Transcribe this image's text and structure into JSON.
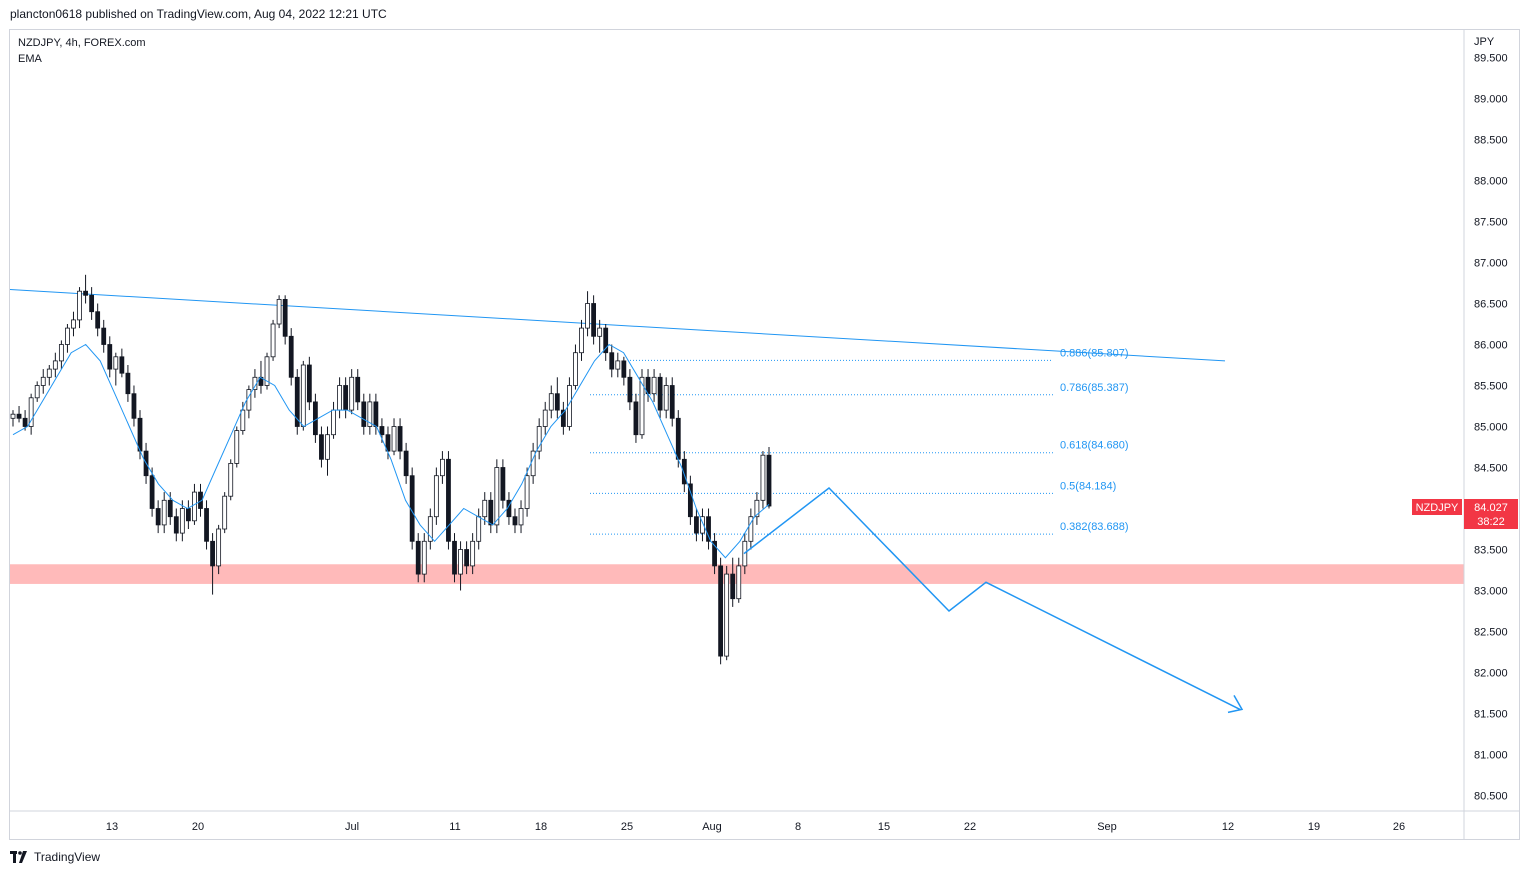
{
  "header": {
    "published": "plancton0618 published on TradingView.com, Aug 04, 2022 12:21 UTC"
  },
  "legend": {
    "symbol_line": "NZDJPY, 4h, FOREX.com",
    "indicator": "EMA"
  },
  "footer": {
    "brand": "TradingView"
  },
  "colors": {
    "up": "#ffffff",
    "down": "#131722",
    "ema": "#2196f3",
    "drawing": "#2196f3",
    "zone": "#ffb2b2",
    "fib": "#2196f3",
    "badge": "#f23645",
    "grid": "#d1d4dc"
  },
  "chart_data": {
    "type": "candlestick",
    "symbol": "NZDJPY",
    "timeframe": "4h",
    "source": "FOREX.com",
    "currency": "JPY",
    "ylim": [
      80.25,
      89.75
    ],
    "y_ticks": [
      "89.500",
      "89.000",
      "88.500",
      "88.000",
      "87.500",
      "87.000",
      "86.500",
      "86.000",
      "85.500",
      "85.000",
      "84.500",
      "84.000",
      "83.500",
      "83.000",
      "82.500",
      "82.000",
      "81.500",
      "81.000",
      "80.500"
    ],
    "x_ticks": [
      "13",
      "20",
      "Jul",
      "11",
      "18",
      "25",
      "Aug",
      "8",
      "15",
      "22",
      "Sep",
      "12",
      "19",
      "26"
    ],
    "price_badge": {
      "label": "NZDJPY",
      "price": "84.027",
      "countdown": "38:22"
    },
    "candles": [
      [
        85.1,
        85.2,
        85.0,
        85.15
      ],
      [
        85.15,
        85.25,
        85.05,
        85.1
      ],
      [
        85.1,
        85.2,
        84.95,
        85.0
      ],
      [
        85.0,
        85.4,
        84.9,
        85.35
      ],
      [
        85.35,
        85.55,
        85.3,
        85.5
      ],
      [
        85.5,
        85.7,
        85.4,
        85.6
      ],
      [
        85.6,
        85.75,
        85.5,
        85.7
      ],
      [
        85.7,
        85.9,
        85.6,
        85.8
      ],
      [
        85.8,
        86.05,
        85.7,
        86.0
      ],
      [
        86.0,
        86.25,
        85.9,
        86.2
      ],
      [
        86.2,
        86.4,
        86.1,
        86.3
      ],
      [
        86.3,
        86.7,
        86.2,
        86.65
      ],
      [
        86.65,
        86.85,
        86.5,
        86.6
      ],
      [
        86.6,
        86.7,
        86.3,
        86.4
      ],
      [
        86.4,
        86.5,
        86.1,
        86.2
      ],
      [
        86.2,
        86.3,
        85.9,
        86.0
      ],
      [
        86.0,
        86.1,
        85.6,
        85.7
      ],
      [
        85.7,
        85.9,
        85.5,
        85.85
      ],
      [
        85.85,
        85.95,
        85.6,
        85.65
      ],
      [
        85.65,
        85.75,
        85.3,
        85.4
      ],
      [
        85.4,
        85.5,
        85.0,
        85.1
      ],
      [
        85.1,
        85.2,
        84.6,
        84.7
      ],
      [
        84.7,
        84.8,
        84.3,
        84.4
      ],
      [
        84.4,
        84.5,
        83.9,
        84.0
      ],
      [
        84.0,
        84.1,
        83.7,
        83.8
      ],
      [
        83.8,
        84.2,
        83.7,
        84.1
      ],
      [
        84.1,
        84.2,
        83.8,
        83.9
      ],
      [
        83.9,
        84.0,
        83.6,
        83.7
      ],
      [
        83.7,
        84.1,
        83.6,
        84.0
      ],
      [
        84.0,
        84.1,
        83.75,
        83.85
      ],
      [
        83.85,
        84.3,
        83.8,
        84.2
      ],
      [
        84.2,
        84.3,
        83.9,
        84.0
      ],
      [
        84.0,
        84.1,
        83.5,
        83.6
      ],
      [
        83.6,
        83.7,
        82.95,
        83.3
      ],
      [
        83.3,
        83.8,
        83.2,
        83.75
      ],
      [
        83.75,
        84.2,
        83.7,
        84.15
      ],
      [
        84.15,
        84.6,
        84.1,
        84.55
      ],
      [
        84.55,
        85.0,
        84.5,
        84.95
      ],
      [
        84.95,
        85.3,
        84.9,
        85.2
      ],
      [
        85.2,
        85.5,
        85.1,
        85.45
      ],
      [
        85.45,
        85.7,
        85.35,
        85.6
      ],
      [
        85.6,
        85.8,
        85.4,
        85.5
      ],
      [
        85.5,
        85.9,
        85.45,
        85.85
      ],
      [
        85.85,
        86.3,
        85.8,
        86.25
      ],
      [
        86.25,
        86.6,
        86.2,
        86.55
      ],
      [
        86.55,
        86.6,
        86.0,
        86.1
      ],
      [
        86.1,
        86.2,
        85.5,
        85.6
      ],
      [
        85.6,
        85.7,
        84.9,
        85.0
      ],
      [
        85.0,
        85.8,
        84.95,
        85.75
      ],
      [
        85.75,
        85.85,
        85.2,
        85.3
      ],
      [
        85.3,
        85.4,
        84.8,
        84.9
      ],
      [
        84.9,
        85.0,
        84.5,
        84.6
      ],
      [
        84.6,
        85.0,
        84.4,
        84.9
      ],
      [
        84.9,
        85.3,
        84.85,
        85.2
      ],
      [
        85.2,
        85.6,
        85.1,
        85.5
      ],
      [
        85.5,
        85.6,
        85.1,
        85.2
      ],
      [
        85.2,
        85.7,
        85.15,
        85.6
      ],
      [
        85.6,
        85.7,
        85.2,
        85.3
      ],
      [
        85.3,
        85.4,
        84.9,
        85.0
      ],
      [
        85.0,
        85.4,
        84.9,
        85.3
      ],
      [
        85.3,
        85.4,
        84.9,
        85.0
      ],
      [
        85.0,
        85.1,
        84.8,
        84.9
      ],
      [
        84.9,
        85.0,
        84.6,
        84.7
      ],
      [
        84.7,
        85.1,
        84.65,
        85.0
      ],
      [
        85.0,
        85.1,
        84.6,
        84.7
      ],
      [
        84.7,
        84.8,
        84.3,
        84.4
      ],
      [
        84.4,
        84.5,
        83.5,
        83.6
      ],
      [
        83.6,
        83.7,
        83.1,
        83.2
      ],
      [
        83.2,
        83.7,
        83.1,
        83.6
      ],
      [
        83.6,
        84.0,
        83.5,
        83.9
      ],
      [
        83.9,
        84.5,
        83.8,
        84.4
      ],
      [
        84.4,
        84.7,
        84.3,
        84.6
      ],
      [
        84.6,
        84.7,
        83.5,
        83.6
      ],
      [
        83.6,
        83.7,
        83.1,
        83.2
      ],
      [
        83.2,
        83.6,
        83.0,
        83.5
      ],
      [
        83.5,
        83.6,
        83.2,
        83.3
      ],
      [
        83.3,
        83.7,
        83.2,
        83.6
      ],
      [
        83.6,
        84.0,
        83.5,
        83.9
      ],
      [
        83.9,
        84.2,
        83.8,
        84.1
      ],
      [
        84.1,
        84.2,
        83.7,
        83.8
      ],
      [
        83.8,
        84.6,
        83.7,
        84.5
      ],
      [
        84.5,
        84.6,
        84.0,
        84.1
      ],
      [
        84.1,
        84.2,
        83.8,
        83.9
      ],
      [
        83.9,
        84.0,
        83.7,
        83.8
      ],
      [
        83.8,
        84.1,
        83.7,
        84.0
      ],
      [
        84.0,
        84.5,
        83.9,
        84.4
      ],
      [
        84.4,
        84.8,
        84.3,
        84.7
      ],
      [
        84.7,
        85.1,
        84.6,
        85.0
      ],
      [
        85.0,
        85.3,
        84.9,
        85.2
      ],
      [
        85.2,
        85.5,
        85.1,
        85.4
      ],
      [
        85.4,
        85.6,
        85.1,
        85.2
      ],
      [
        85.2,
        85.3,
        84.9,
        85.0
      ],
      [
        85.0,
        85.6,
        84.95,
        85.5
      ],
      [
        85.5,
        86.0,
        85.45,
        85.9
      ],
      [
        85.9,
        86.3,
        85.8,
        86.2
      ],
      [
        86.2,
        86.65,
        86.1,
        86.5
      ],
      [
        86.5,
        86.6,
        86.0,
        86.1
      ],
      [
        86.1,
        86.3,
        85.9,
        86.2
      ],
      [
        86.2,
        86.25,
        85.8,
        85.9
      ],
      [
        85.9,
        86.0,
        85.6,
        85.7
      ],
      [
        85.7,
        85.9,
        85.6,
        85.8
      ],
      [
        85.8,
        85.85,
        85.5,
        85.6
      ],
      [
        85.6,
        85.7,
        85.2,
        85.3
      ],
      [
        85.3,
        85.4,
        84.8,
        84.9
      ],
      [
        84.9,
        85.7,
        84.85,
        85.6
      ],
      [
        85.6,
        85.7,
        85.3,
        85.4
      ],
      [
        85.4,
        85.7,
        85.3,
        85.6
      ],
      [
        85.6,
        85.65,
        85.1,
        85.2
      ],
      [
        85.2,
        85.6,
        85.1,
        85.5
      ],
      [
        85.5,
        85.6,
        85.0,
        85.1
      ],
      [
        85.1,
        85.2,
        84.5,
        84.6
      ],
      [
        84.6,
        84.7,
        84.2,
        84.3
      ],
      [
        84.3,
        84.4,
        83.8,
        83.9
      ],
      [
        83.9,
        84.0,
        83.6,
        83.7
      ],
      [
        83.7,
        84.0,
        83.6,
        83.9
      ],
      [
        83.9,
        84.0,
        83.5,
        83.6
      ],
      [
        83.6,
        83.7,
        83.2,
        83.3
      ],
      [
        83.3,
        83.4,
        82.1,
        82.2
      ],
      [
        82.2,
        83.3,
        82.15,
        83.2
      ],
      [
        83.2,
        83.4,
        82.8,
        82.9
      ],
      [
        82.9,
        83.4,
        82.85,
        83.3
      ],
      [
        83.3,
        83.7,
        83.2,
        83.6
      ],
      [
        83.6,
        84.0,
        83.5,
        83.9
      ],
      [
        83.9,
        84.2,
        83.8,
        84.1
      ],
      [
        84.1,
        84.7,
        84.0,
        84.65
      ],
      [
        84.65,
        84.75,
        84.0,
        84.03
      ]
    ],
    "ema": [
      84.9,
      85.0,
      85.3,
      85.6,
      85.9,
      86.0,
      85.8,
      85.4,
      85.0,
      84.6,
      84.3,
      84.1,
      84.0,
      84.1,
      84.5,
      84.9,
      85.3,
      85.6,
      85.5,
      85.2,
      85.0,
      85.1,
      85.2,
      85.2,
      85.1,
      85.0,
      84.6,
      84.1,
      83.8,
      83.6,
      83.8,
      84.0,
      83.9,
      83.8,
      84.0,
      84.3,
      84.7,
      85.0,
      85.2,
      85.5,
      85.8,
      86.0,
      85.9,
      85.6,
      85.3,
      84.9,
      84.5,
      84.0,
      83.6,
      83.4,
      83.6,
      83.9,
      84.05
    ],
    "trendline": {
      "from": [
        "Jun 6",
        86.67
      ],
      "to": [
        "Aug 27",
        85.8
      ]
    },
    "support_zone": [
      83.08,
      83.32
    ],
    "fibonacci": [
      {
        "ratio": "0.886",
        "price": "85.807",
        "label": "0.886(85.807)"
      },
      {
        "ratio": "0.786",
        "price": "85.387",
        "label": "0.786(85.387)"
      },
      {
        "ratio": "0.618",
        "price": "84.680",
        "label": "0.618(84.680)"
      },
      {
        "ratio": "0.5",
        "price": "84.184",
        "label": "0.5(84.184)"
      },
      {
        "ratio": "0.382",
        "price": "83.688",
        "label": "0.382(83.688)"
      }
    ],
    "projection_path": [
      [
        83.45,
        0
      ],
      [
        84.25,
        1
      ],
      [
        82.75,
        2
      ],
      [
        83.1,
        3
      ],
      [
        81.55,
        4
      ]
    ]
  }
}
